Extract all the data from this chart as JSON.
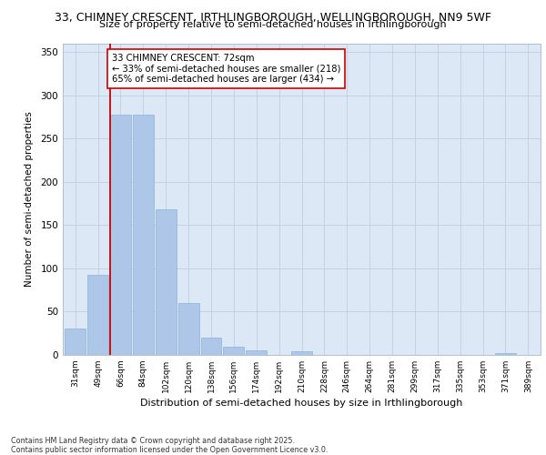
{
  "title_line1": "33, CHIMNEY CRESCENT, IRTHLINGBOROUGH, WELLINGBOROUGH, NN9 5WF",
  "title_line2": "Size of property relative to semi-detached houses in Irthlingborough",
  "xlabel": "Distribution of semi-detached houses by size in Irthlingborough",
  "ylabel": "Number of semi-detached properties",
  "footer": "Contains HM Land Registry data © Crown copyright and database right 2025.\nContains public sector information licensed under the Open Government Licence v3.0.",
  "categories": [
    "31sqm",
    "49sqm",
    "66sqm",
    "84sqm",
    "102sqm",
    "120sqm",
    "138sqm",
    "156sqm",
    "174sqm",
    "192sqm",
    "210sqm",
    "228sqm",
    "246sqm",
    "264sqm",
    "281sqm",
    "299sqm",
    "317sqm",
    "335sqm",
    "353sqm",
    "371sqm",
    "389sqm"
  ],
  "values": [
    30,
    93,
    278,
    278,
    168,
    60,
    20,
    9,
    5,
    0,
    4,
    0,
    0,
    0,
    0,
    0,
    0,
    0,
    0,
    2,
    0
  ],
  "bar_color": "#aec6e8",
  "bar_edge_color": "#8ab4d8",
  "vline_color": "#cc0000",
  "annotation_title": "33 CHIMNEY CRESCENT: 72sqm",
  "annotation_line1": "← 33% of semi-detached houses are smaller (218)",
  "annotation_line2": "65% of semi-detached houses are larger (434) →",
  "annotation_box_facecolor": "#ffffff",
  "annotation_box_edgecolor": "#cc0000",
  "background_color": "#dce8f5",
  "ylim": [
    0,
    360
  ],
  "yticks": [
    0,
    50,
    100,
    150,
    200,
    250,
    300,
    350
  ]
}
